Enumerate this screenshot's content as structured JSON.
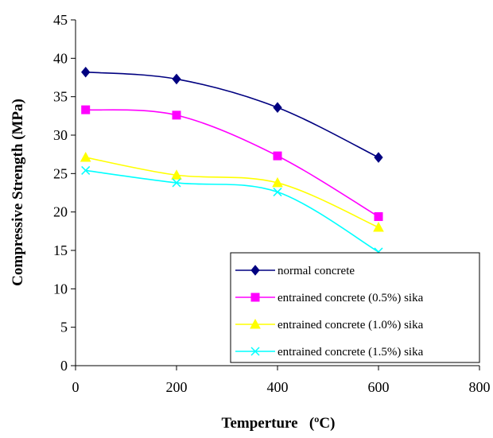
{
  "chart_data": {
    "type": "line",
    "title": "",
    "xlabel": "Temperture   (ºC)",
    "ylabel": "Compressive Strength  (MPa)",
    "xlim": [
      0,
      800
    ],
    "ylim": [
      0,
      45
    ],
    "x_ticks": [
      0,
      200,
      400,
      600,
      800
    ],
    "y_ticks": [
      0,
      5,
      10,
      15,
      20,
      25,
      30,
      35,
      40,
      45
    ],
    "grid": false,
    "legend_position": "bottom-right",
    "series": [
      {
        "name": "normal concrete",
        "color": "#000080",
        "marker": "diamond",
        "x": [
          20,
          200,
          400,
          600
        ],
        "y": [
          38.2,
          37.3,
          33.6,
          27.1
        ]
      },
      {
        "name": "entrained concrete (0.5%) sika",
        "color": "#ff00ff",
        "marker": "square",
        "x": [
          20,
          200,
          400,
          600
        ],
        "y": [
          33.3,
          32.6,
          27.3,
          19.4
        ]
      },
      {
        "name": "entrained concrete (1.0%) sika",
        "color": "#ffff00",
        "marker": "triangle",
        "x": [
          20,
          200,
          400,
          600
        ],
        "y": [
          27.1,
          24.8,
          23.8,
          18.0
        ]
      },
      {
        "name": "entrained concrete (1.5%) sika",
        "color": "#00ffff",
        "marker": "x",
        "x": [
          20,
          200,
          400,
          600
        ],
        "y": [
          25.4,
          23.8,
          22.6,
          14.8
        ]
      }
    ]
  }
}
